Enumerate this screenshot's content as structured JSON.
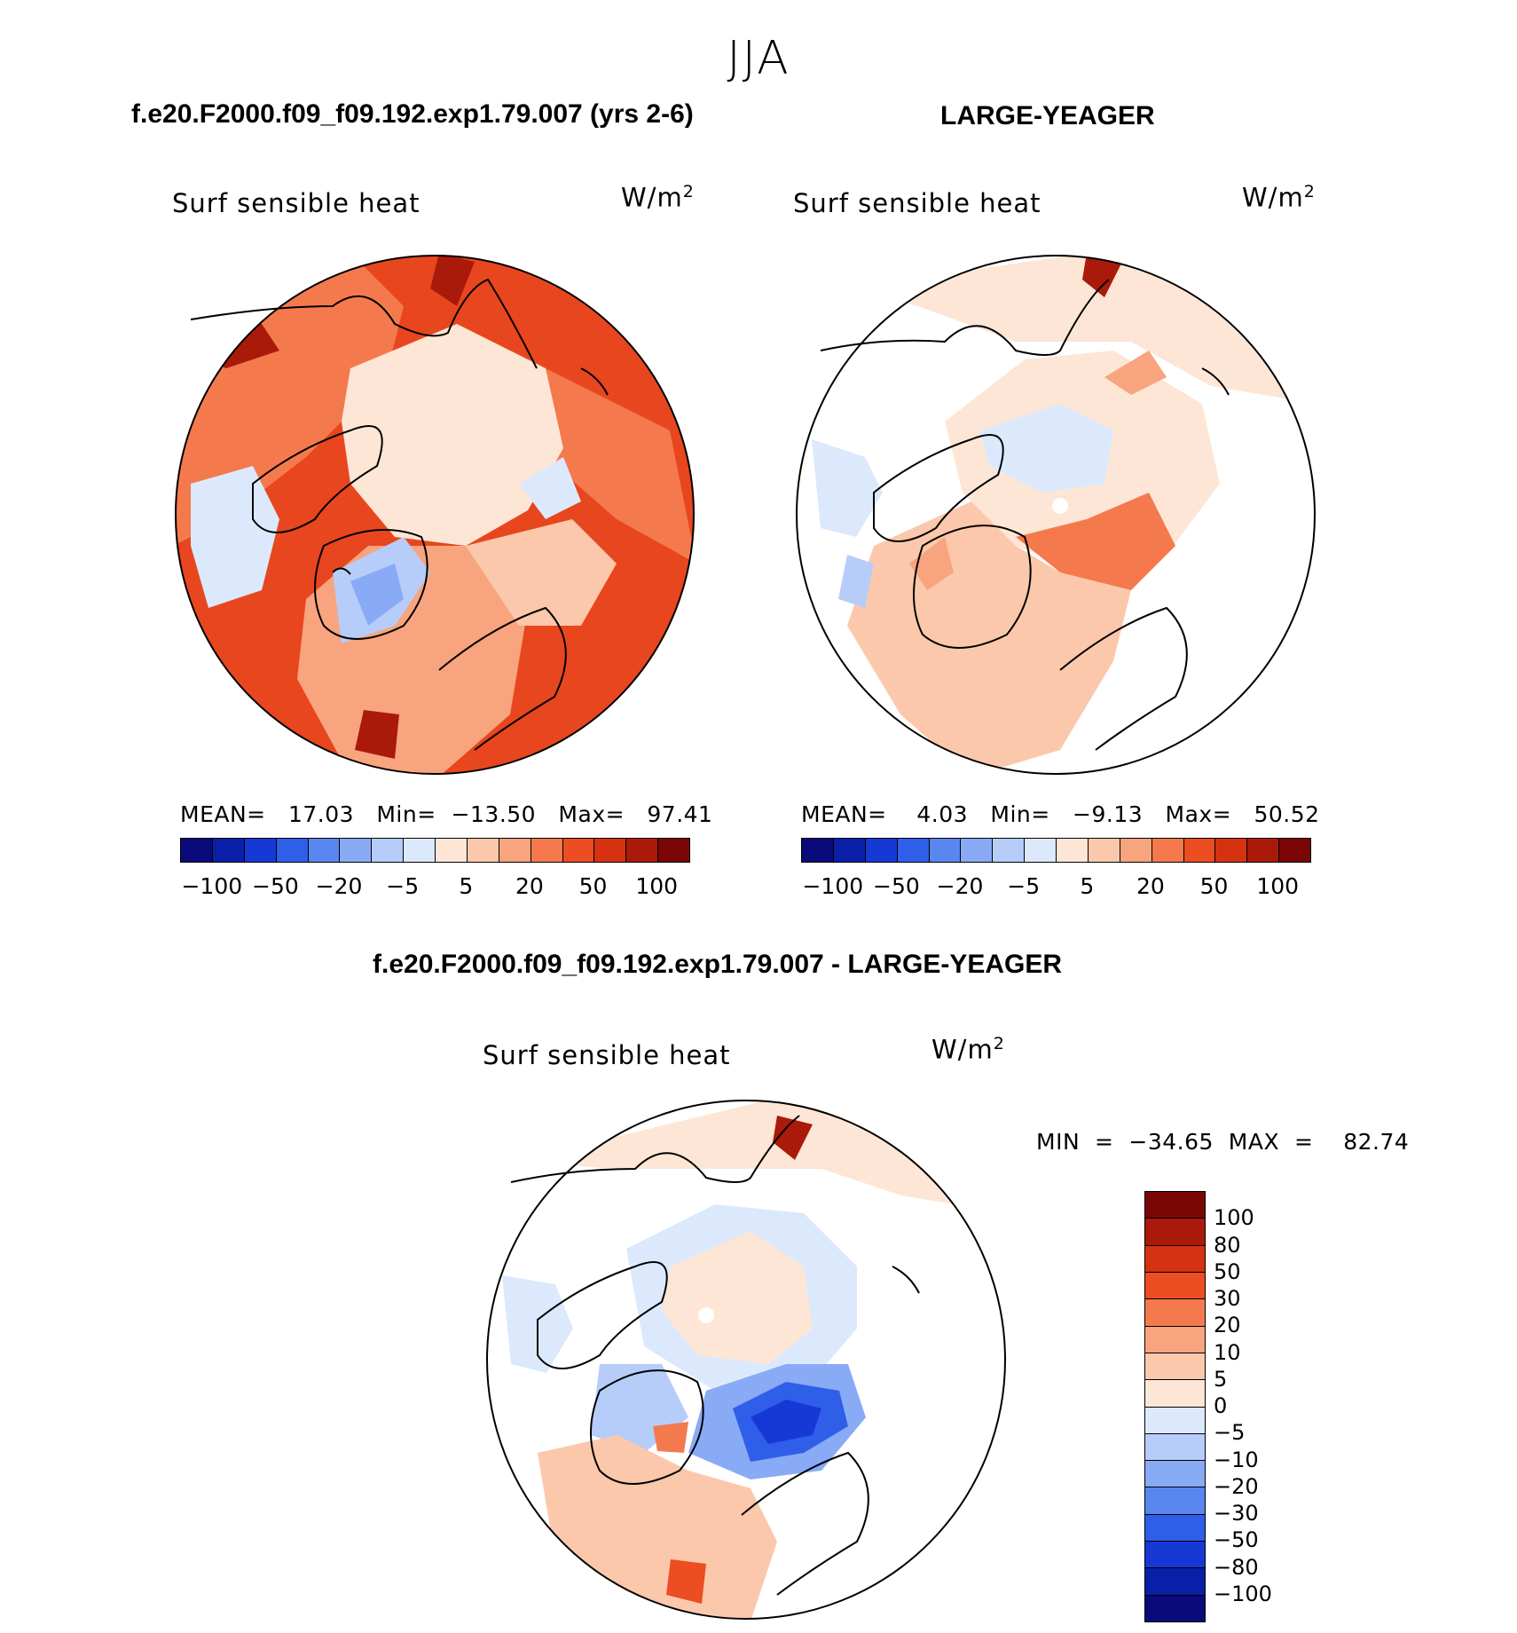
{
  "season": "JJA",
  "panels": [
    {
      "title": "f.e20.F2000.f09_f09.192.exp1.79.007 (yrs 2-6)",
      "variable": "Surf sensible heat",
      "unit_base": "W/m",
      "unit_exp": "2",
      "stats": "MEAN=   17.03   Min=  −13.50   Max=   97.41"
    },
    {
      "title": "LARGE-YEAGER",
      "variable": "Surf sensible heat",
      "unit_base": "W/m",
      "unit_exp": "2",
      "stats": "MEAN=    4.03   Min=   −9.13   Max=   50.52"
    }
  ],
  "diff_panel": {
    "title": "f.e20.F2000.f09_f09.192.exp1.79.007 - LARGE-YEAGER",
    "variable": "Surf sensible heat",
    "unit_base": "W/m",
    "unit_exp": "2",
    "stats": "MIN  =  −34.65  MAX  =    82.74"
  },
  "colorbar_top": {
    "colors": [
      "#0a0a7a",
      "#0a1fa8",
      "#1639d6",
      "#2f5ee8",
      "#5a86f0",
      "#89aaf5",
      "#b6cdfa",
      "#dce9fc",
      "#fde6d6",
      "#fbc8ac",
      "#f8a47e",
      "#f47a4e",
      "#ec4d22",
      "#d63212",
      "#aa1a0a",
      "#7a0606"
    ],
    "tick_labels": [
      "−100",
      "−50",
      "−20",
      "−5",
      "5",
      "20",
      "50",
      "100"
    ]
  },
  "colorbar_diff": {
    "colors": [
      "#7a0606",
      "#aa1a0a",
      "#d63212",
      "#ec4d22",
      "#f47a4e",
      "#f8a47e",
      "#fbc8ac",
      "#fde6d6",
      "#dce9fc",
      "#b6cdfa",
      "#89aaf5",
      "#5a86f0",
      "#2f5ee8",
      "#1639d6",
      "#0a1fa8",
      "#0a0a7a"
    ],
    "tick_labels": [
      "100",
      "80",
      "50",
      "30",
      "20",
      "10",
      "5",
      "0",
      "−5",
      "−10",
      "−20",
      "−30",
      "−50",
      "−80",
      "−100"
    ]
  },
  "map_colors": {
    "land": "#ffffff",
    "strong_warm": "#e8461e",
    "warm": "#f47a4e",
    "mild_warm": "#f8a47e",
    "light_warm": "#fde6d6",
    "light_cool": "#dce9fc",
    "cool": "#89aaf5",
    "strong_cool": "#2f5ee8",
    "deep_cool": "#1639d6",
    "dark_red": "#aa1a0a",
    "coast": "#000000"
  }
}
